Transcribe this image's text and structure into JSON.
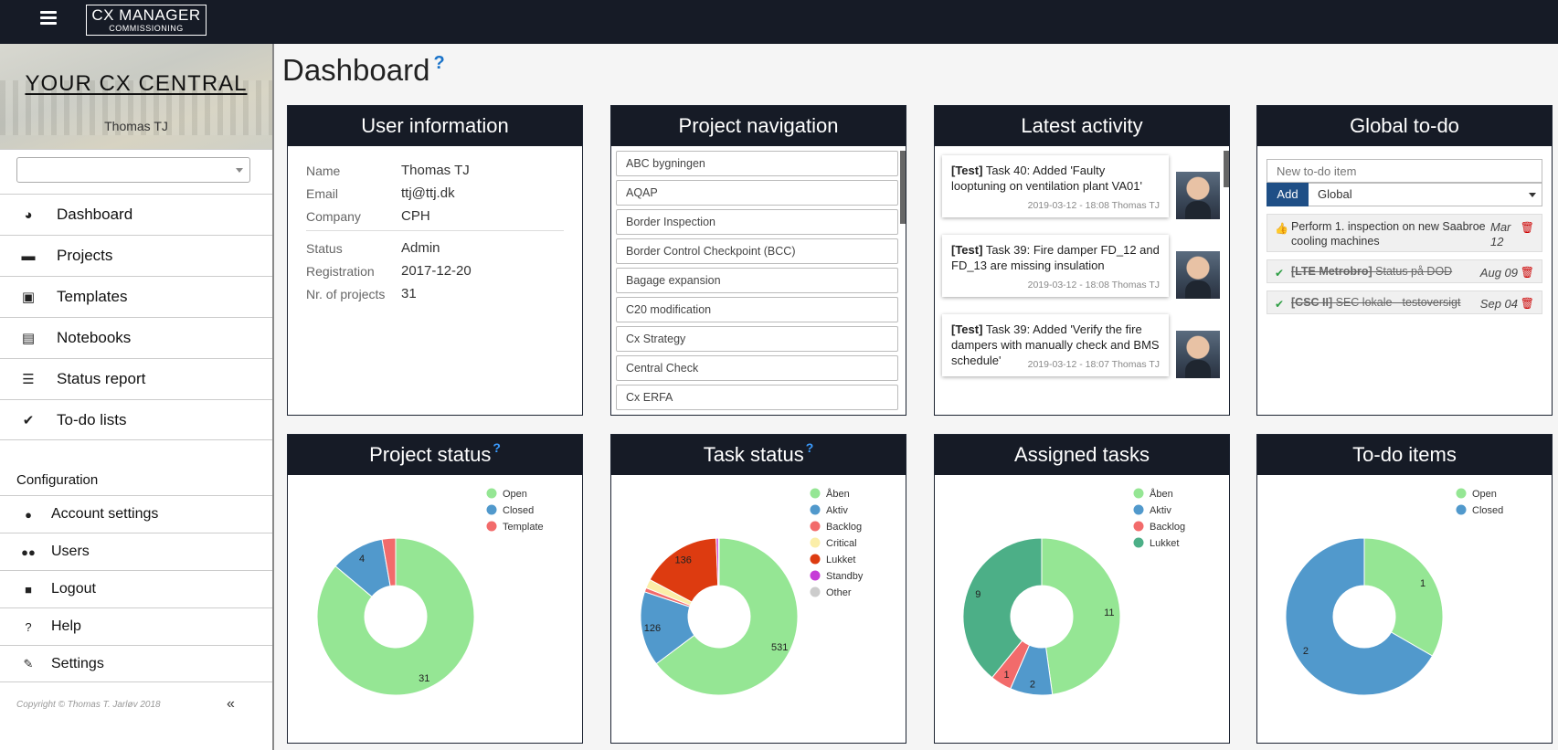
{
  "header": {
    "logo_line1": "CX MANAGER",
    "logo_line2": "COMMISSIONING"
  },
  "sidebar": {
    "title": "YOUR CX CENTRAL",
    "user": "Thomas TJ",
    "select_value": "",
    "items": [
      {
        "label": "Dashboard",
        "icon": "dashboard-icon",
        "glyph": "◕"
      },
      {
        "label": "Projects",
        "icon": "briefcase-icon",
        "glyph": "▬"
      },
      {
        "label": "Templates",
        "icon": "floppy-icon",
        "glyph": "▣"
      },
      {
        "label": "Notebooks",
        "icon": "document-icon",
        "glyph": "▤"
      },
      {
        "label": "Status report",
        "icon": "list-icon",
        "glyph": "☰"
      },
      {
        "label": "To-do lists",
        "icon": "check-icon",
        "glyph": "✔"
      }
    ],
    "config_label": "Configuration",
    "config_items": [
      {
        "label": "Account settings",
        "icon": "user-icon",
        "glyph": "●"
      },
      {
        "label": "Users",
        "icon": "users-icon",
        "glyph": "●●"
      },
      {
        "label": "Logout",
        "icon": "lock-icon",
        "glyph": "■"
      },
      {
        "label": "Help",
        "icon": "question-icon",
        "glyph": "?"
      },
      {
        "label": "Settings",
        "icon": "wrench-icon",
        "glyph": "✎"
      }
    ],
    "copyright": "Copyright © Thomas T. Jarløv 2018",
    "collapse": "«"
  },
  "page": {
    "title": "Dashboard",
    "help": "?"
  },
  "user_info": {
    "title": "User information",
    "rows1": [
      {
        "k": "Name",
        "v": "Thomas TJ"
      },
      {
        "k": "Email",
        "v": "ttj@ttj.dk"
      },
      {
        "k": "Company",
        "v": "CPH"
      }
    ],
    "rows2": [
      {
        "k": "Status",
        "v": "Admin"
      },
      {
        "k": "Registration",
        "v": "2017-12-20"
      },
      {
        "k": "Nr. of projects",
        "v": "31"
      }
    ]
  },
  "project_nav": {
    "title": "Project navigation",
    "items": [
      "ABC bygningen",
      "AQAP",
      "Border Inspection",
      "Border Control Checkpoint (BCC)",
      "Bagage expansion",
      "C20 modification",
      "Cx Strategy",
      "Central Check",
      "Cx ERFA"
    ]
  },
  "latest_activity": {
    "title": "Latest activity",
    "items": [
      {
        "tag": "[Test]",
        "text": " Task 40: Added 'Faulty looptuning on ventilation plant VA01'",
        "meta": "2019-03-12 - 18:08 Thomas TJ"
      },
      {
        "tag": "[Test]",
        "text": " Task 39: Fire damper FD_12 and FD_13 are missing insulation",
        "meta": "2019-03-12 - 18:08 Thomas TJ"
      },
      {
        "tag": "[Test]",
        "text": " Task 39: Added 'Verify the fire dampers with manually check and BMS schedule'",
        "meta": "2019-03-12 - 18:07 Thomas TJ"
      }
    ]
  },
  "global_todo": {
    "title": "Global to-do",
    "placeholder": "New to-do item",
    "add_label": "Add",
    "scope": "Global",
    "items": [
      {
        "text": "Perform 1. inspection on new Saabroe cooling machines",
        "date": "Mar 12",
        "done": false
      },
      {
        "tag": "[LTE Metrobro]",
        "text": " Status på DOD",
        "date": "Aug 09",
        "done": true
      },
      {
        "tag": "[CSC II]",
        "text": " SEC lokale - testoversigt",
        "date": "Sep 04",
        "done": true
      }
    ]
  },
  "chart_data": [
    {
      "type": "pie",
      "title": "Project status",
      "help": "?",
      "donut": true,
      "categories": [
        "Open",
        "Closed",
        "Template"
      ],
      "values": [
        31,
        4,
        1
      ],
      "colors": [
        "#95e694",
        "#5199cc",
        "#f26b6b"
      ],
      "labels_shown": [
        true,
        true,
        false
      ],
      "legend_position": "top-right"
    },
    {
      "type": "pie",
      "title": "Task status",
      "help": "?",
      "donut": true,
      "categories": [
        "Åben",
        "Aktiv",
        "Backlog",
        "Critical",
        "Lukket",
        "Standby",
        "Other"
      ],
      "values": [
        531,
        126,
        7,
        15,
        136,
        4,
        1
      ],
      "colors": [
        "#95e694",
        "#5199cc",
        "#f26b6b",
        "#fbeea8",
        "#dd3b10",
        "#c63bd7",
        "#cccccc"
      ],
      "labels_shown": [
        true,
        true,
        false,
        false,
        true,
        false,
        false
      ],
      "legend_position": "top-right"
    },
    {
      "type": "pie",
      "title": "Assigned tasks",
      "help": "",
      "donut": true,
      "categories": [
        "Åben",
        "Aktiv",
        "Backlog",
        "Lukket"
      ],
      "values": [
        11,
        2,
        1,
        9
      ],
      "colors": [
        "#95e694",
        "#5199cc",
        "#f26b6b",
        "#4caf87"
      ],
      "labels_shown": [
        true,
        true,
        true,
        true
      ],
      "legend_position": "top-right"
    },
    {
      "type": "pie",
      "title": "To-do items",
      "help": "",
      "donut": true,
      "categories": [
        "Open",
        "Closed"
      ],
      "values": [
        1,
        2
      ],
      "colors": [
        "#95e694",
        "#5199cc"
      ],
      "labels_shown": [
        true,
        true
      ],
      "legend_position": "top-right"
    }
  ]
}
